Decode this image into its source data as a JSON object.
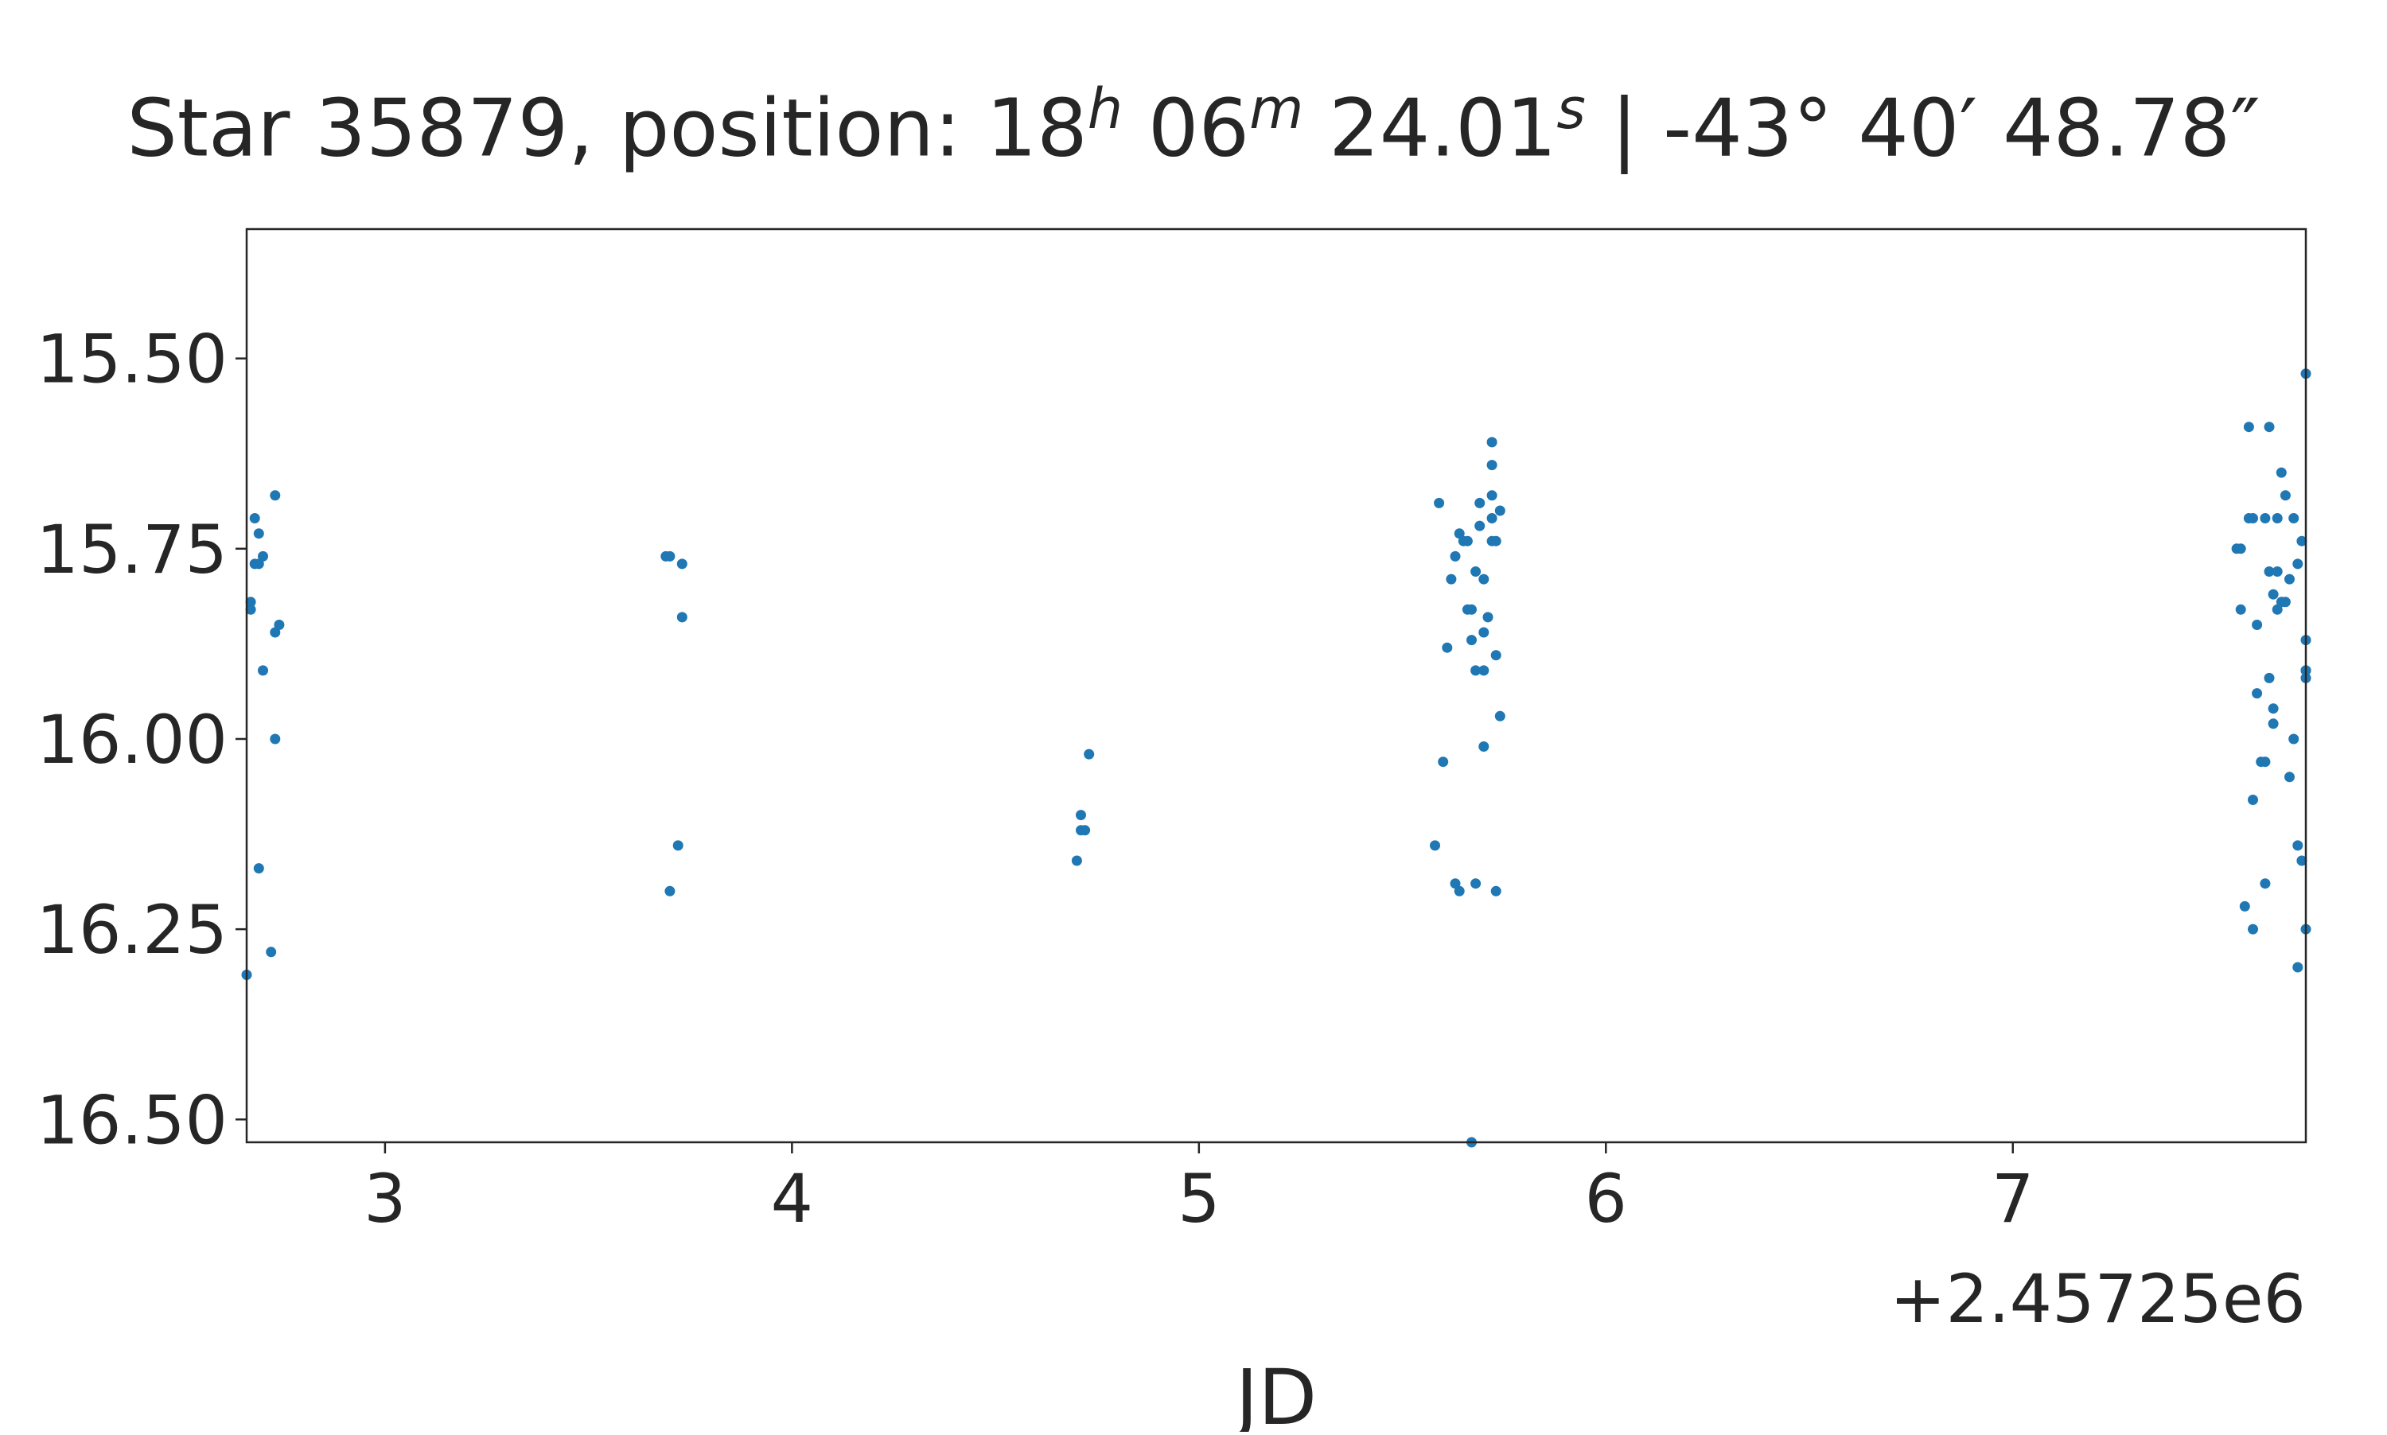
{
  "chart_data": {
    "type": "scatter",
    "title": {
      "prefix": "Star 35879, position: 18",
      "ra_h_sup": "h",
      "ra_min": " 06",
      "ra_m_sup": "m",
      "ra_sec": " 24.01",
      "ra_s_sup": "s",
      "dec": " | -43° 40′ 48.78″"
    },
    "xlabel": "JD",
    "ylabel": "",
    "x_offset_label": "+2.45725e6",
    "x_offset": 2457250,
    "xlim": [
      2457252.66,
      2457257.72
    ],
    "ylim": [
      16.53,
      15.33
    ],
    "y_inverted": true,
    "x_ticks": [
      2457253,
      2457254,
      2457255,
      2457256,
      2457257
    ],
    "x_tick_labels": [
      "3",
      "4",
      "5",
      "6",
      "7"
    ],
    "y_ticks": [
      15.5,
      15.75,
      16.0,
      16.25,
      16.5
    ],
    "y_tick_labels": [
      "15.50",
      "15.75",
      "16.00",
      "16.25",
      "16.50"
    ],
    "grid": false,
    "marker_color": "#1f77b4",
    "series": [
      {
        "points": [
          [
            2457252.66,
            16.31
          ],
          [
            2457252.67,
            15.82
          ],
          [
            2457252.67,
            15.83
          ],
          [
            2457252.68,
            15.71
          ],
          [
            2457252.68,
            15.77
          ],
          [
            2457252.69,
            15.73
          ],
          [
            2457252.69,
            15.77
          ],
          [
            2457252.69,
            16.17
          ],
          [
            2457252.7,
            15.91
          ],
          [
            2457252.7,
            15.76
          ],
          [
            2457252.72,
            16.28
          ],
          [
            2457252.73,
            15.68
          ],
          [
            2457252.73,
            15.86
          ],
          [
            2457252.73,
            16.0
          ],
          [
            2457252.74,
            15.85
          ],
          [
            2457253.69,
            15.76
          ],
          [
            2457253.7,
            15.76
          ],
          [
            2457253.7,
            16.2
          ],
          [
            2457253.72,
            16.14
          ],
          [
            2457253.73,
            15.77
          ],
          [
            2457253.73,
            15.84
          ],
          [
            2457254.7,
            16.16
          ],
          [
            2457254.71,
            16.12
          ],
          [
            2457254.71,
            16.1
          ],
          [
            2457254.72,
            16.12
          ],
          [
            2457254.73,
            16.02
          ],
          [
            2457255.58,
            16.14
          ],
          [
            2457255.59,
            15.69
          ],
          [
            2457255.6,
            16.03
          ],
          [
            2457255.61,
            15.88
          ],
          [
            2457255.62,
            15.79
          ],
          [
            2457255.63,
            15.76
          ],
          [
            2457255.63,
            16.19
          ],
          [
            2457255.64,
            16.2
          ],
          [
            2457255.64,
            15.73
          ],
          [
            2457255.65,
            15.74
          ],
          [
            2457255.66,
            15.83
          ],
          [
            2457255.66,
            15.74
          ],
          [
            2457255.67,
            15.83
          ],
          [
            2457255.67,
            15.87
          ],
          [
            2457255.67,
            16.53
          ],
          [
            2457255.68,
            15.78
          ],
          [
            2457255.68,
            15.91
          ],
          [
            2457255.68,
            16.19
          ],
          [
            2457255.69,
            15.69
          ],
          [
            2457255.69,
            15.72
          ],
          [
            2457255.7,
            16.01
          ],
          [
            2457255.7,
            15.91
          ],
          [
            2457255.7,
            15.79
          ],
          [
            2457255.7,
            15.86
          ],
          [
            2457255.71,
            15.84
          ],
          [
            2457255.72,
            15.71
          ],
          [
            2457255.72,
            15.68
          ],
          [
            2457255.72,
            15.64
          ],
          [
            2457255.72,
            15.61
          ],
          [
            2457255.72,
            15.74
          ],
          [
            2457255.73,
            16.2
          ],
          [
            2457255.73,
            15.74
          ],
          [
            2457255.73,
            15.89
          ],
          [
            2457255.74,
            15.7
          ],
          [
            2457255.74,
            15.97
          ],
          [
            2457257.55,
            15.75
          ],
          [
            2457257.56,
            15.75
          ],
          [
            2457257.56,
            15.83
          ],
          [
            2457257.57,
            16.22
          ],
          [
            2457257.58,
            15.71
          ],
          [
            2457257.58,
            15.59
          ],
          [
            2457257.59,
            16.08
          ],
          [
            2457257.59,
            15.71
          ],
          [
            2457257.59,
            16.25
          ],
          [
            2457257.6,
            15.94
          ],
          [
            2457257.6,
            15.85
          ],
          [
            2457257.61,
            16.03
          ],
          [
            2457257.62,
            16.03
          ],
          [
            2457257.62,
            15.71
          ],
          [
            2457257.62,
            16.19
          ],
          [
            2457257.63,
            15.78
          ],
          [
            2457257.63,
            15.59
          ],
          [
            2457257.63,
            15.92
          ],
          [
            2457257.64,
            15.81
          ],
          [
            2457257.64,
            15.96
          ],
          [
            2457257.64,
            15.98
          ],
          [
            2457257.65,
            15.71
          ],
          [
            2457257.65,
            15.83
          ],
          [
            2457257.65,
            15.78
          ],
          [
            2457257.66,
            15.65
          ],
          [
            2457257.66,
            15.82
          ],
          [
            2457257.67,
            15.68
          ],
          [
            2457257.67,
            15.82
          ],
          [
            2457257.68,
            15.79
          ],
          [
            2457257.68,
            16.05
          ],
          [
            2457257.69,
            15.71
          ],
          [
            2457257.69,
            16.0
          ],
          [
            2457257.7,
            15.77
          ],
          [
            2457257.7,
            16.14
          ],
          [
            2457257.7,
            16.3
          ],
          [
            2457257.71,
            15.74
          ],
          [
            2457257.71,
            16.16
          ],
          [
            2457257.72,
            15.91
          ],
          [
            2457257.72,
            15.92
          ],
          [
            2457257.72,
            15.87
          ],
          [
            2457257.72,
            15.91
          ],
          [
            2457257.72,
            16.25
          ],
          [
            2457257.72,
            15.52
          ]
        ]
      }
    ]
  }
}
